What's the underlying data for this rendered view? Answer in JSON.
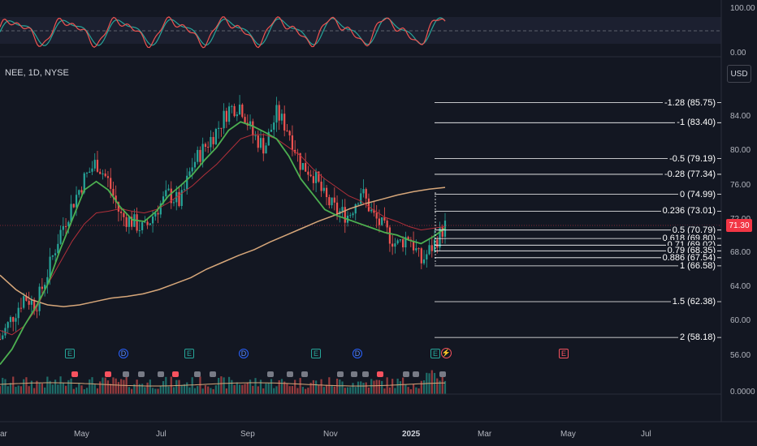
{
  "symbol": "NEE, 1D, NYSE",
  "currency": "USD",
  "current_price": "71.30",
  "oscillator_axis": [
    "100.00",
    "0.00"
  ],
  "price_axis": [
    "84.00",
    "80.00",
    "76.00",
    "72.00",
    "68.00",
    "64.00",
    "60.00",
    "56.00"
  ],
  "volume_axis": "0.0000",
  "time_axis": [
    "ar",
    "May",
    "Jul",
    "Sep",
    "Nov",
    "2025",
    "Mar",
    "May",
    "Jul"
  ],
  "fib_levels": [
    {
      "label": "-1.28 (85.75)",
      "price": 85.75
    },
    {
      "label": "-1 (83.40)",
      "price": 83.4
    },
    {
      "label": "-0.5 (79.19)",
      "price": 79.19
    },
    {
      "label": "-0.28 (77.34)",
      "price": 77.34
    },
    {
      "label": "0 (74.99)",
      "price": 74.99
    },
    {
      "label": "0.236 (73.01)",
      "price": 73.01
    },
    {
      "label": "0.5 (70.79)",
      "price": 70.79
    },
    {
      "label": "0.618 (69.80)",
      "price": 69.8
    },
    {
      "label": "0.71 (69.02)",
      "price": 69.02
    },
    {
      "label": "0.79 (68.35)",
      "price": 68.35
    },
    {
      "label": "0.886 (67.54)",
      "price": 67.54
    },
    {
      "label": "1 (66.58)",
      "price": 66.58
    },
    {
      "label": "1.5 (62.38)",
      "price": 62.38
    },
    {
      "label": "2 (58.18)",
      "price": 58.18
    }
  ],
  "markers": [
    {
      "type": "E"
    },
    {
      "type": "D"
    },
    {
      "type": "E"
    },
    {
      "type": "D"
    },
    {
      "type": "E"
    },
    {
      "type": "D"
    },
    {
      "type": "E"
    },
    {
      "type": "E",
      "future": true
    }
  ],
  "colors": {
    "background": "#131722",
    "up": "#26a69a",
    "down": "#ef5350",
    "ema_fast": "#4caf50",
    "ema_mid": "#b2303a",
    "sma_slow": "#d7a77a",
    "current_price": "#f23645"
  },
  "chart_data": {
    "type": "candlestick",
    "y_range": [
      54.5,
      89
    ],
    "close_path": [
      58,
      60.5,
      63,
      62,
      66,
      70.5,
      73.8,
      76.8,
      78.8,
      76.5,
      72.5,
      71.8,
      70.8,
      73.2,
      75,
      74,
      78.5,
      80.5,
      82.5,
      85,
      85.5,
      82,
      80.5,
      84.5,
      82.5,
      78.5,
      77.5,
      74.5,
      73,
      72.5,
      75.5,
      72.5,
      70.8,
      69,
      70.2,
      67,
      69,
      71.3
    ],
    "ema20_path": [
      55,
      56.8,
      59.5,
      61.8,
      64.5,
      68.5,
      72,
      75.5,
      76.5,
      75.5,
      73.5,
      72,
      71.8,
      73,
      74.8,
      76,
      77.3,
      79,
      80.5,
      82.5,
      83.5,
      83,
      82.3,
      81.5,
      79.5,
      76.8,
      75,
      73.2,
      72.5,
      72,
      71.5,
      71,
      70.5,
      70.2,
      69.6,
      69.2,
      70,
      71
    ],
    "ema50_path": [
      59,
      58.5,
      59.5,
      61.5,
      64.5,
      67,
      69.5,
      71.5,
      72.8,
      73,
      73.3,
      73,
      72.8,
      73.2,
      74,
      75,
      76,
      77.3,
      78.5,
      80,
      81.5,
      82,
      82,
      81.5,
      80.5,
      79.5,
      78,
      76.8,
      75.8,
      74.8,
      74.2,
      73.2,
      72.3,
      71.8,
      71.2,
      70.8,
      71,
      71.2
    ],
    "sma200_path": [
      65.5,
      63.8,
      62.6,
      62,
      61.8,
      62,
      62.4,
      62.8,
      63,
      63.3,
      63.8,
      64.5,
      65.2,
      66.2,
      67,
      67.8,
      68.5,
      69.4,
      70.2,
      71,
      71.8,
      72.5,
      73.3,
      73.9,
      74.4,
      74.9,
      75.3,
      75.6,
      75.8
    ]
  }
}
